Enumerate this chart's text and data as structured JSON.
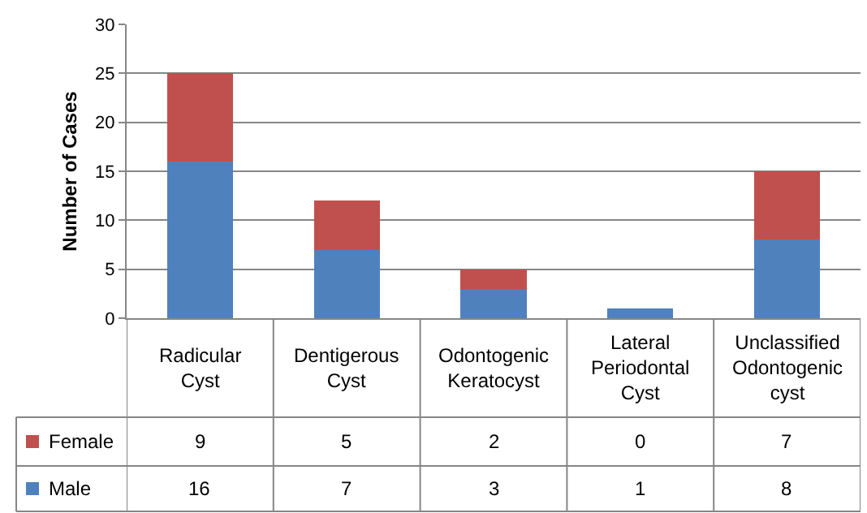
{
  "chart_data": {
    "type": "bar",
    "stacked": true,
    "ylabel": "Number of Cases",
    "categories": [
      "Radicular Cyst",
      "Dentigerous Cyst",
      "Odontogenic Keratocyst",
      "Lateral Periodontal Cyst",
      "Unclassified Odontogenic cyst"
    ],
    "series": [
      {
        "name": "Male",
        "color": "#4f81bd",
        "values": [
          16,
          7,
          3,
          1,
          8
        ]
      },
      {
        "name": "Female",
        "color": "#c0504d",
        "values": [
          9,
          5,
          2,
          0,
          7
        ]
      }
    ],
    "ylim": [
      0,
      30
    ],
    "yticks": [
      0,
      5,
      10,
      15,
      20,
      25,
      30
    ],
    "grid": "y",
    "legend": "bottom left",
    "data_labels": true
  }
}
